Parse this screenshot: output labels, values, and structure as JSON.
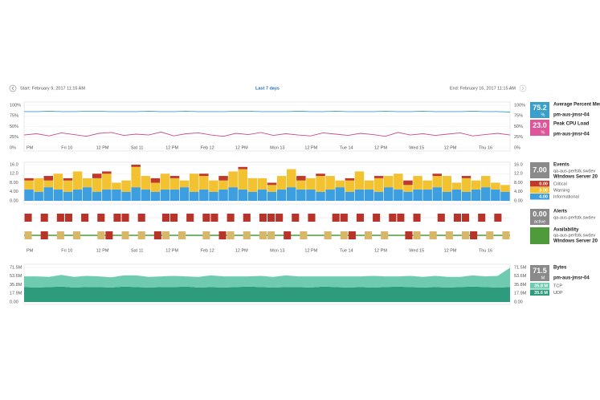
{
  "header": {
    "start": "Start:  February 9, 2017 11:15 AM",
    "range": "Last 7 days",
    "end": "End:  February 16, 2017 11:15 AM"
  },
  "time_labels": [
    "PM",
    "Fri 10",
    "12 PM",
    "Sat 11",
    "12 PM",
    "Feb 12",
    "12 PM",
    "Mon 13",
    "12 PM",
    "Tue 14",
    "12 PM",
    "Wed 15",
    "12 PM",
    "Thu 16"
  ],
  "cpu_mem": {
    "type": "line",
    "ylim": [
      0,
      100
    ],
    "yticks": [
      {
        "value": 0,
        "label": "0%"
      },
      {
        "value": 25,
        "label": "25%"
      },
      {
        "value": 50,
        "label": "50%"
      },
      {
        "value": 75,
        "label": "75%"
      },
      {
        "value": 100,
        "label": "100%"
      }
    ],
    "series": [
      {
        "name": "Average Percent Mem",
        "host": "pm-aus-jmsr-04",
        "color": "#3a9fc9",
        "reading": "75.2",
        "unit": "%",
        "values": [
          85,
          85,
          86,
          85,
          85,
          86,
          86,
          85,
          85,
          85,
          86,
          85,
          85,
          86,
          85,
          85,
          85,
          86,
          86,
          85,
          85,
          85,
          86,
          85,
          85,
          86,
          85,
          85,
          85,
          86,
          85,
          85,
          86,
          85,
          85,
          85,
          86,
          85,
          85,
          84
        ]
      },
      {
        "name": "Peak CPU Load",
        "host": "pm-aus-jmsr-04",
        "color": "#c0508a",
        "reading": "23.0",
        "unit": "%",
        "box": "#e0559a",
        "values": [
          30,
          33,
          28,
          35,
          31,
          27,
          34,
          36,
          29,
          32,
          30,
          37,
          28,
          33,
          35,
          30,
          27,
          34,
          31,
          36,
          29,
          33,
          30,
          28,
          35,
          32,
          29,
          34,
          31,
          27,
          36,
          30,
          33,
          29,
          32,
          35,
          28,
          31,
          34,
          30
        ]
      }
    ]
  },
  "events": {
    "type": "stacked_bar",
    "title": "Events",
    "host": "qa-aus-perfstk.swdev",
    "os": "Windows Server 20",
    "reading": "7.00",
    "ylim": [
      0,
      16
    ],
    "yticks": [
      {
        "value": 0,
        "label": "0.00"
      },
      {
        "value": 4,
        "label": "4.00"
      },
      {
        "value": 8,
        "label": "8.00"
      },
      {
        "value": 12,
        "label": "12.0"
      },
      {
        "value": 16,
        "label": "16.0"
      }
    ],
    "series": [
      {
        "name": "Critical",
        "color": "#c0392b",
        "reading": "0.00",
        "values": [
          1,
          0,
          2,
          0,
          1,
          0,
          0,
          2,
          1,
          0,
          0,
          1,
          0,
          2,
          0,
          1,
          0,
          0,
          1,
          0,
          2,
          0,
          1,
          0,
          0,
          1,
          0,
          0,
          2,
          0,
          1,
          0,
          0,
          1,
          0,
          0,
          1,
          0,
          0,
          2,
          0,
          0,
          1,
          0,
          0,
          1,
          0,
          0,
          0,
          0
        ]
      },
      {
        "name": "Warning",
        "color": "#f2c230",
        "reading": "3.00",
        "values": [
          4,
          6,
          3,
          7,
          5,
          8,
          4,
          6,
          7,
          3,
          5,
          9,
          6,
          4,
          7,
          5,
          3,
          8,
          6,
          5,
          4,
          7,
          9,
          6,
          5,
          3,
          6,
          8,
          4,
          5,
          7,
          6,
          3,
          5,
          8,
          4,
          6,
          5,
          7,
          3,
          6,
          4,
          5,
          7,
          3,
          6,
          4,
          5,
          3,
          3
        ]
      },
      {
        "name": "Informational",
        "color": "#3d9ee0",
        "reading": "4.00",
        "values": [
          5,
          4,
          6,
          5,
          4,
          5,
          6,
          4,
          5,
          5,
          4,
          6,
          5,
          4,
          5,
          5,
          6,
          4,
          5,
          4,
          5,
          6,
          5,
          4,
          5,
          4,
          5,
          6,
          5,
          5,
          4,
          5,
          6,
          4,
          5,
          5,
          4,
          6,
          5,
          4,
          5,
          5,
          6,
          4,
          5,
          4,
          5,
          6,
          5,
          4
        ]
      }
    ]
  },
  "alerts": {
    "title": "Alerts",
    "host": "qa-aus-perfstk.swdev",
    "reading": "0.00",
    "unit": "active",
    "color": "#b8342a",
    "values": [
      1,
      0,
      1,
      0,
      1,
      1,
      0,
      1,
      0,
      1,
      0,
      1,
      1,
      0,
      1,
      0,
      0,
      1,
      1,
      0,
      1,
      0,
      1,
      1,
      0,
      1,
      0,
      1,
      0,
      1,
      1,
      1,
      0,
      1,
      0,
      1,
      0,
      0,
      1,
      1,
      0,
      1,
      0,
      1,
      0,
      1,
      1,
      0,
      1,
      0,
      0,
      1,
      0,
      1,
      1,
      0,
      1,
      0,
      1,
      0
    ]
  },
  "availability": {
    "title": "Availability",
    "host": "qa-aus-perfstk.swdev",
    "os": "Windows Server 20",
    "colors": [
      "#4f9a3a",
      "#d7b86a",
      "#b8342a"
    ],
    "values": [
      1,
      0,
      2,
      0,
      1,
      0,
      1,
      0,
      0,
      1,
      2,
      0,
      1,
      0,
      1,
      0,
      2,
      1,
      0,
      1,
      0,
      0,
      1,
      0,
      2,
      1,
      0,
      1,
      0,
      1,
      1,
      0,
      2,
      0,
      1,
      0,
      0,
      1,
      0,
      1,
      2,
      0,
      1,
      0,
      1,
      0,
      0,
      2,
      1,
      0,
      1,
      0,
      1,
      0,
      1,
      2,
      0,
      1,
      0,
      1
    ]
  },
  "bytes": {
    "type": "stacked_area",
    "title": "Bytes",
    "host": "pm-aus-jmsr-04",
    "reading": "71.5",
    "unit": "M",
    "ylim": [
      0,
      71.5
    ],
    "yticks": [
      {
        "value": 0,
        "label": "0.00"
      },
      {
        "value": 17.9,
        "label": "17.9M"
      },
      {
        "value": 35.8,
        "label": "35.8M"
      },
      {
        "value": 53.6,
        "label": "53.6M"
      },
      {
        "value": 71.5,
        "label": "71.5M"
      }
    ],
    "series": [
      {
        "name": "TCP",
        "color": "#6fcbb0",
        "reading": "35.8 M",
        "values": [
          22,
          23,
          21,
          24,
          22,
          23,
          22,
          21,
          23,
          24,
          22,
          22,
          23,
          21,
          22,
          24,
          23,
          22,
          21,
          23,
          22,
          24,
          22,
          23,
          21,
          22,
          23,
          22,
          24,
          22,
          21,
          23,
          22,
          23,
          22,
          21,
          23,
          22,
          24,
          40
        ]
      },
      {
        "name": "UDP",
        "color": "#2e9c7c",
        "reading": "35.6 M",
        "values": [
          31,
          30,
          31,
          32,
          30,
          31,
          31,
          30,
          32,
          31,
          30,
          31,
          31,
          32,
          30,
          31,
          30,
          31,
          32,
          31,
          30,
          31,
          31,
          30,
          32,
          31,
          30,
          31,
          30,
          31,
          32,
          31,
          30,
          31,
          30,
          31,
          32,
          31,
          30,
          31
        ]
      }
    ]
  }
}
